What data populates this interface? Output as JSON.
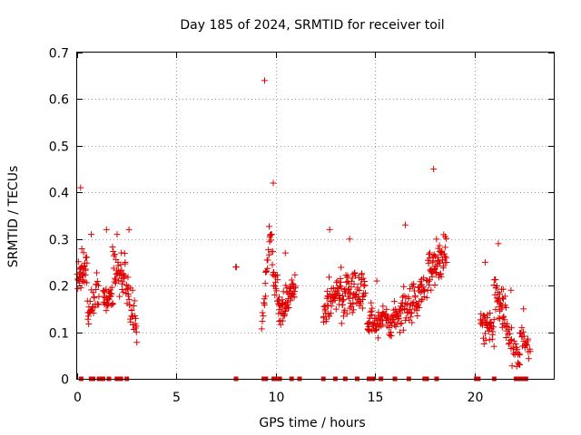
{
  "chart_data": {
    "type": "scatter",
    "title": "Day 185 of 2024, SRMTID for receiver toil",
    "xlabel": "GPS time / hours",
    "ylabel": "SRMTID / TECUs",
    "xlim": [
      0,
      24
    ],
    "ylim": [
      0,
      0.7
    ],
    "xticks": [
      0,
      5,
      10,
      15,
      20
    ],
    "yticks": [
      0,
      0.1,
      0.2,
      0.3,
      0.4,
      0.5,
      0.6,
      0.7
    ],
    "xtick_labels": [
      "0",
      "5",
      "10",
      "15",
      "20"
    ],
    "ytick_labels": [
      "0",
      "0.1",
      "0.2",
      "0.3",
      "0.4",
      "0.5",
      "0.6",
      "0.7"
    ],
    "grid": true,
    "marker": "+",
    "color": "#e00000",
    "zero_value_marker": "square",
    "series": [
      {
        "name": "SRMTID",
        "clusters": [
          {
            "t0": 0.0,
            "t1": 0.5,
            "y0": 0.22,
            "y1": 0.24,
            "spread": 0.07,
            "n": 35,
            "peak": 0.41
          },
          {
            "t0": 0.5,
            "t1": 1.1,
            "y0": 0.14,
            "y1": 0.2,
            "spread": 0.07,
            "n": 30,
            "peak": 0.31
          },
          {
            "t0": 1.3,
            "t1": 1.8,
            "y0": 0.18,
            "y1": 0.17,
            "spread": 0.05,
            "n": 30,
            "peak": 0.32
          },
          {
            "t0": 1.8,
            "t1": 2.4,
            "y0": 0.25,
            "y1": 0.21,
            "spread": 0.06,
            "n": 35,
            "peak": 0.31
          },
          {
            "t0": 2.4,
            "t1": 3.0,
            "y0": 0.22,
            "y1": 0.1,
            "spread": 0.06,
            "n": 35,
            "peak": 0.32
          },
          {
            "t0": 8.0,
            "t1": 8.05,
            "y0": 0.24,
            "y1": 0.24,
            "spread": 0.0,
            "n": 1,
            "peak": 0.24
          },
          {
            "t0": 9.3,
            "t1": 9.7,
            "y0": 0.12,
            "y1": 0.3,
            "spread": 0.06,
            "n": 20,
            "peak": 0.64
          },
          {
            "t0": 9.7,
            "t1": 10.2,
            "y0": 0.3,
            "y1": 0.15,
            "spread": 0.06,
            "n": 30,
            "peak": 0.42
          },
          {
            "t0": 10.2,
            "t1": 11.0,
            "y0": 0.14,
            "y1": 0.2,
            "spread": 0.05,
            "n": 55,
            "peak": 0.27
          },
          {
            "t0": 12.4,
            "t1": 13.3,
            "y0": 0.15,
            "y1": 0.2,
            "spread": 0.06,
            "n": 55,
            "peak": 0.32
          },
          {
            "t0": 13.3,
            "t1": 14.5,
            "y0": 0.17,
            "y1": 0.2,
            "spread": 0.07,
            "n": 75,
            "peak": 0.3
          },
          {
            "t0": 14.6,
            "t1": 16.0,
            "y0": 0.12,
            "y1": 0.13,
            "spread": 0.05,
            "n": 80,
            "peak": 0.21
          },
          {
            "t0": 16.0,
            "t1": 17.5,
            "y0": 0.13,
            "y1": 0.19,
            "spread": 0.06,
            "n": 85,
            "peak": 0.33
          },
          {
            "t0": 17.6,
            "t1": 18.6,
            "y0": 0.23,
            "y1": 0.26,
            "spread": 0.07,
            "n": 65,
            "peak": 0.45
          },
          {
            "t0": 20.3,
            "t1": 21.0,
            "y0": 0.12,
            "y1": 0.1,
            "spread": 0.05,
            "n": 40,
            "peak": 0.25
          },
          {
            "t0": 21.0,
            "t1": 21.6,
            "y0": 0.2,
            "y1": 0.13,
            "spread": 0.06,
            "n": 40,
            "peak": 0.29
          },
          {
            "t0": 21.6,
            "t1": 22.3,
            "y0": 0.1,
            "y1": 0.03,
            "spread": 0.05,
            "n": 30,
            "peak": 0.19
          },
          {
            "t0": 22.3,
            "t1": 22.8,
            "y0": 0.1,
            "y1": 0.06,
            "spread": 0.04,
            "n": 22,
            "peak": 0.15
          }
        ]
      }
    ],
    "zero_points_x": [
      0.2,
      0.7,
      0.8,
      1.1,
      1.2,
      1.3,
      1.6,
      2.0,
      2.2,
      2.5,
      8.0,
      9.4,
      9.5,
      9.9,
      10.0,
      10.2,
      10.8,
      11.2,
      12.4,
      13.0,
      13.5,
      14.1,
      14.7,
      14.8,
      14.9,
      15.3,
      16.0,
      16.7,
      17.5,
      17.6,
      18.1,
      20.1,
      20.2,
      21.0,
      22.1,
      22.3,
      22.4,
      22.5,
      22.6
    ]
  }
}
